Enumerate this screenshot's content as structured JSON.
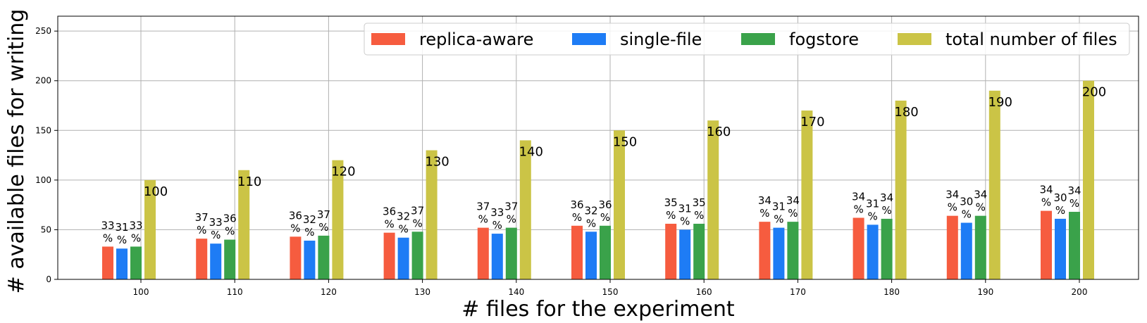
{
  "chart_data": {
    "type": "bar",
    "title": "",
    "xlabel": "# files for the experiment",
    "ylabel": "# available files for writing",
    "ylim": [
      0,
      265
    ],
    "yticks": [
      0,
      50,
      100,
      150,
      200,
      250
    ],
    "grid": true,
    "legend_position": "top-right",
    "categories": [
      "100",
      "110",
      "120",
      "130",
      "140",
      "150",
      "160",
      "170",
      "180",
      "190",
      "200"
    ],
    "series": [
      {
        "name": "replica-aware",
        "color": "#f65c3f",
        "values": [
          33,
          41,
          43,
          47,
          52,
          54,
          56,
          58,
          62,
          64,
          69
        ],
        "labels": [
          "33\n%",
          "37\n%",
          "36\n%",
          "36\n%",
          "37\n%",
          "36\n%",
          "35\n%",
          "34\n%",
          "34\n%",
          "34\n%",
          "34\n%"
        ]
      },
      {
        "name": "single-file",
        "color": "#1e7cf5",
        "values": [
          31,
          36,
          39,
          42,
          46,
          48,
          50,
          52,
          55,
          57,
          61
        ],
        "labels": [
          "31\n%",
          "33\n%",
          "32\n%",
          "32\n%",
          "33\n%",
          "32\n%",
          "31\n%",
          "31\n%",
          "31\n%",
          "30\n%",
          "30\n%"
        ]
      },
      {
        "name": "fogstore",
        "color": "#3aa24a",
        "values": [
          33,
          40,
          44,
          48,
          52,
          54,
          56,
          58,
          61,
          64,
          68
        ],
        "labels": [
          "33\n%",
          "36\n%",
          "37\n%",
          "37\n%",
          "37\n%",
          "36\n%",
          "35\n%",
          "34\n%",
          "34\n%",
          "34\n%",
          "34\n%"
        ]
      },
      {
        "name": "total number of files",
        "color": "#cbc446",
        "values": [
          100,
          110,
          120,
          130,
          140,
          150,
          160,
          170,
          180,
          190,
          200
        ],
        "labels": [
          "100",
          "110",
          "120",
          "130",
          "140",
          "150",
          "160",
          "170",
          "180",
          "190",
          "200"
        ]
      }
    ]
  }
}
